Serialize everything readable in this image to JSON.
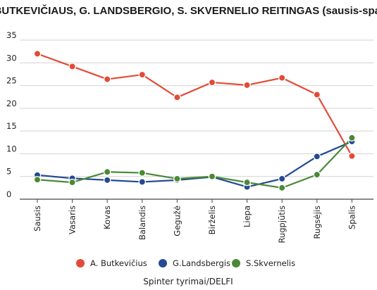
{
  "chart_data": {
    "type": "line",
    "title": "A. BUTKEVIČIAUS, G. LANDSBERGIO, S. SKVERNELIO REITINGAS (sausis-spalis)",
    "xlabel": "",
    "ylabel": "",
    "categories": [
      "Sausis",
      "Vasaris",
      "Kovas",
      "Balandis",
      "Gegužė",
      "Birželis",
      "Liepa",
      "Rugpjūtis",
      "Rugsėjis",
      "Spalis"
    ],
    "ylim": [
      0,
      35
    ],
    "yticks": [
      "0",
      "5",
      "10",
      "15",
      "20",
      "25",
      "30",
      "35"
    ],
    "grid": "horizontal",
    "legend_position": "bottom",
    "series": [
      {
        "name": "A. Butkevičius",
        "color": "#e34b36",
        "values": [
          32.0,
          29.2,
          26.4,
          27.4,
          22.4,
          25.7,
          25.1,
          26.7,
          23.0,
          9.5
        ]
      },
      {
        "name": "G.Landsbergis",
        "color": "#244a92",
        "values": [
          5.3,
          4.6,
          4.2,
          3.8,
          4.2,
          4.9,
          2.7,
          4.5,
          9.4,
          12.7
        ]
      },
      {
        "name": "S.Skvernelis",
        "color": "#4a8a35",
        "values": [
          4.3,
          3.7,
          6.0,
          5.8,
          4.5,
          5.0,
          3.7,
          2.5,
          5.4,
          13.5
        ]
      }
    ],
    "source": "Spinter tyrimai/DELFI"
  }
}
